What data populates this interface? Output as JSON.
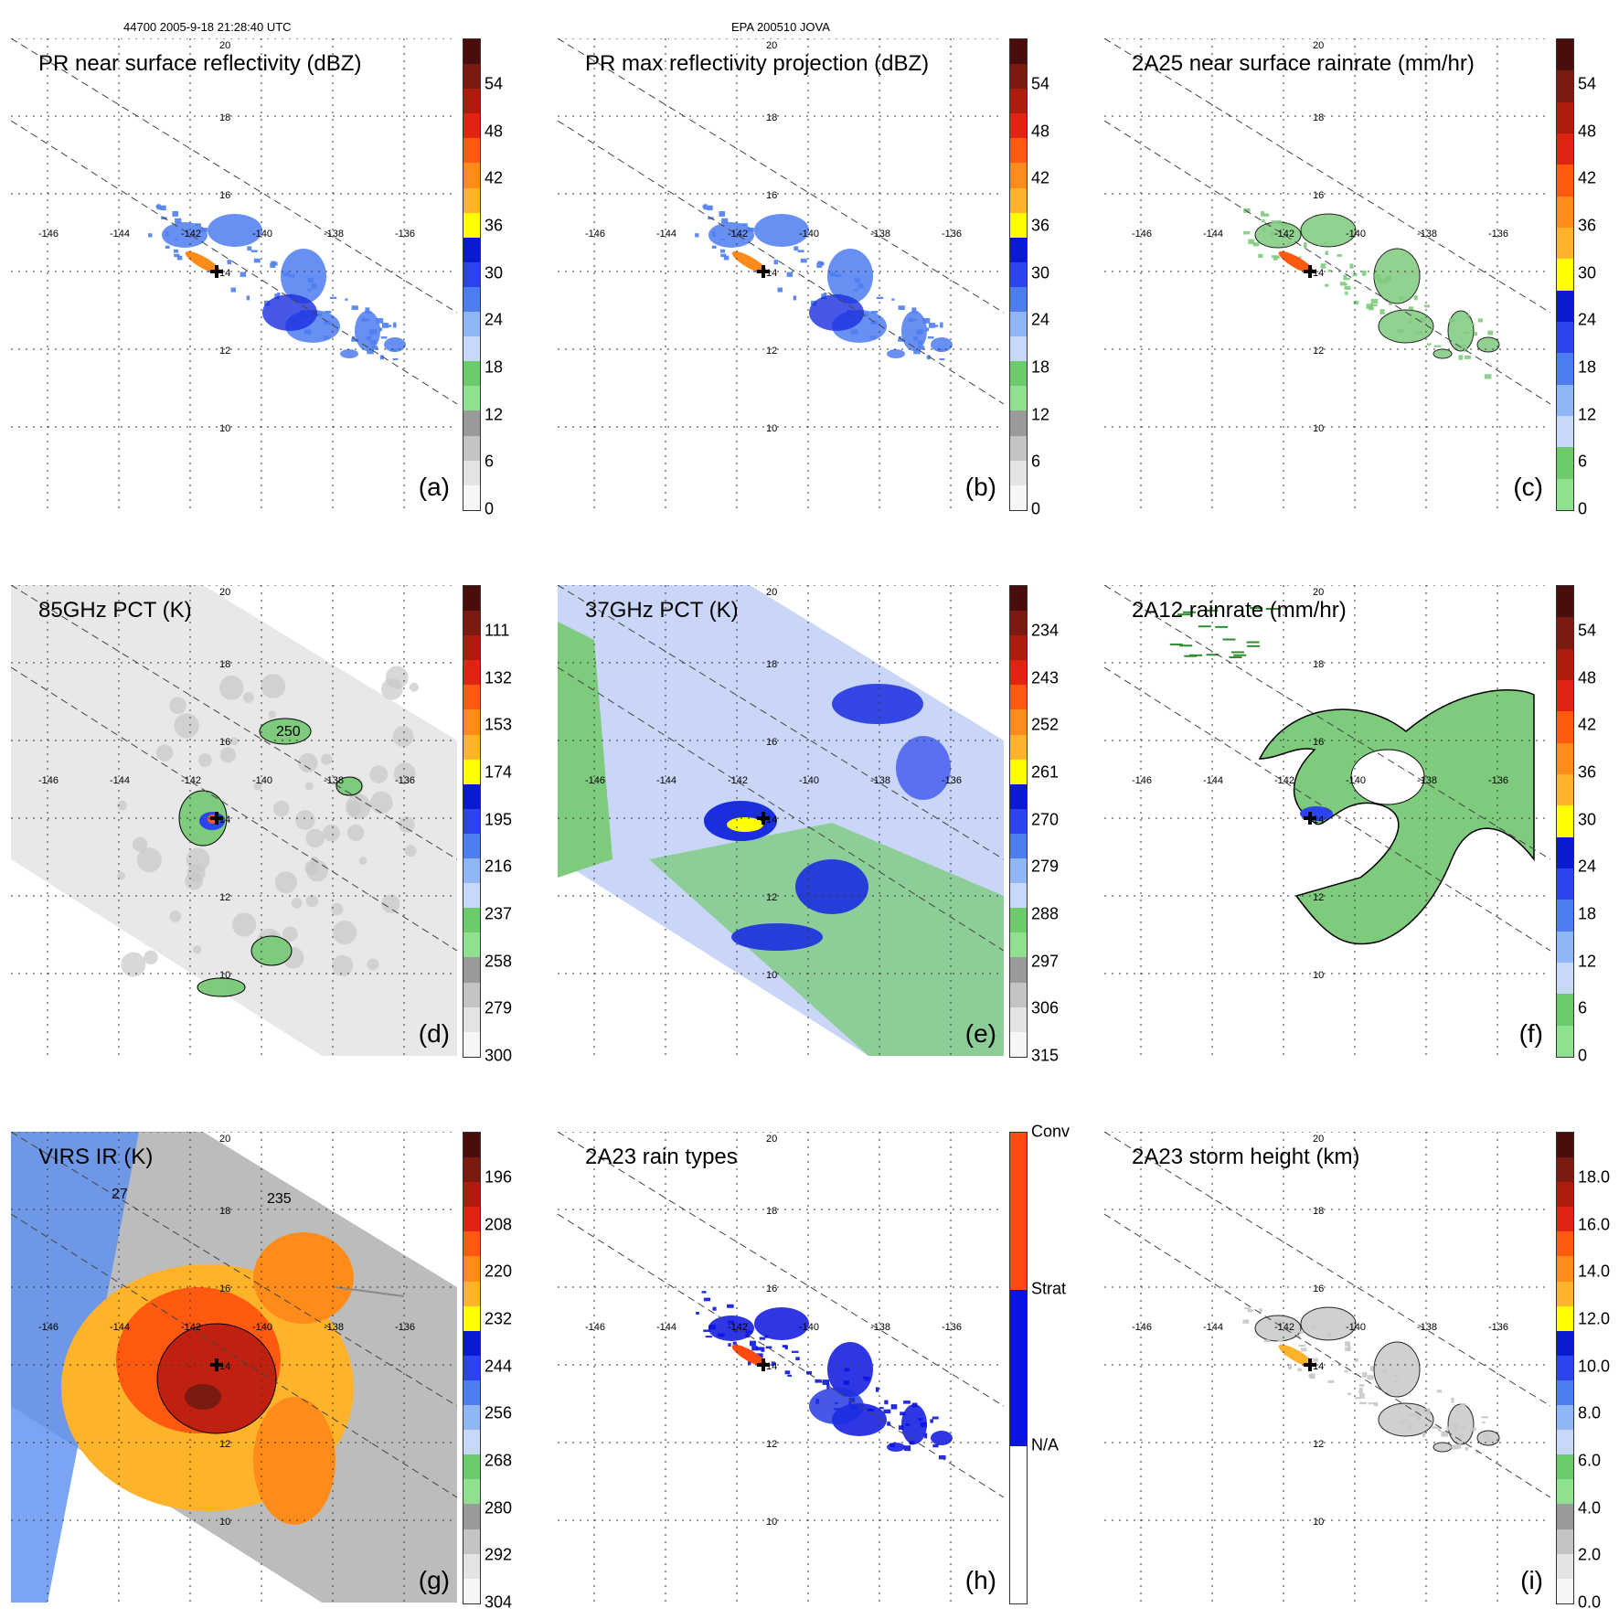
{
  "header": {
    "left": "44700 2005-9-18 21:28:40 UTC",
    "center": "EPA 200510 JOVA"
  },
  "grid": {
    "lon_labels": [
      "-146",
      "-144",
      "-142",
      "-140",
      "-138",
      "-136"
    ],
    "lat_labels": [
      "20",
      "18",
      "16",
      "14",
      "12",
      "10"
    ]
  },
  "panels": [
    {
      "id": "a",
      "title": "PR near surface reflectivity (dBZ)",
      "label": "(a)",
      "kind": "pr",
      "ticks": [
        "54",
        "48",
        "42",
        "36",
        "30",
        "24",
        "18",
        "12",
        "6",
        "0"
      ],
      "bar": [
        "#4a0d0d",
        "#7a1a10",
        "#b01b10",
        "#e02412",
        "#ff5a10",
        "#ff8c1a",
        "#ffb32a",
        "#ffff00",
        "#0a1ad0",
        "#2b44ee",
        "#4d7df0",
        "#8fb6f5",
        "#c8d8f8",
        "#6ccc6c",
        "#8fe08f",
        "#9a9a9a",
        "#c4c4c4",
        "#e4e4e4",
        "#f6f6f6"
      ]
    },
    {
      "id": "b",
      "title": "PR max reflectivity projection (dBZ)",
      "label": "(b)",
      "kind": "pr",
      "ticks": [
        "54",
        "48",
        "42",
        "36",
        "30",
        "24",
        "18",
        "12",
        "6",
        "0"
      ],
      "bar": [
        "#4a0d0d",
        "#7a1a10",
        "#b01b10",
        "#e02412",
        "#ff5a10",
        "#ff8c1a",
        "#ffb32a",
        "#ffff00",
        "#0a1ad0",
        "#2b44ee",
        "#4d7df0",
        "#8fb6f5",
        "#c8d8f8",
        "#6ccc6c",
        "#8fe08f",
        "#9a9a9a",
        "#c4c4c4",
        "#e4e4e4",
        "#f6f6f6"
      ]
    },
    {
      "id": "c",
      "title": "2A25 near surface rainrate (mm/hr)",
      "label": "(c)",
      "kind": "rain",
      "ticks": [
        "54",
        "48",
        "42",
        "36",
        "30",
        "24",
        "18",
        "12",
        "6",
        "0"
      ],
      "bar": [
        "#4a0d0d",
        "#7a1a10",
        "#b01b10",
        "#e02412",
        "#ff5a10",
        "#ff8c1a",
        "#ffb32a",
        "#ffff00",
        "#0a1ad0",
        "#2b44ee",
        "#4d7df0",
        "#8fb6f5",
        "#c8d8f8",
        "#6ccc6c",
        "#8fe08f"
      ]
    },
    {
      "id": "d",
      "title": "85GHz PCT (K)",
      "label": "(d)",
      "kind": "pct85",
      "ticks": [
        "111",
        "132",
        "153",
        "174",
        "195",
        "216",
        "237",
        "258",
        "279",
        "300"
      ],
      "bar": [
        "#4a0d0d",
        "#7a1a10",
        "#b01b10",
        "#e02412",
        "#ff5a10",
        "#ff8c1a",
        "#ffb32a",
        "#ffff00",
        "#0a1ad0",
        "#2b44ee",
        "#4d7df0",
        "#8fb6f5",
        "#c8d8f8",
        "#6ccc6c",
        "#8fe08f",
        "#9a9a9a",
        "#c4c4c4",
        "#e4e4e4",
        "#f6f6f6"
      ],
      "contour_label": "250"
    },
    {
      "id": "e",
      "title": "37GHz PCT (K)",
      "label": "(e)",
      "kind": "pct37",
      "ticks": [
        "234",
        "243",
        "252",
        "261",
        "270",
        "279",
        "288",
        "297",
        "306",
        "315"
      ],
      "bar": [
        "#4a0d0d",
        "#7a1a10",
        "#b01b10",
        "#e02412",
        "#ff5a10",
        "#ff8c1a",
        "#ffb32a",
        "#ffff00",
        "#0a1ad0",
        "#2b44ee",
        "#4d7df0",
        "#8fb6f5",
        "#c8d8f8",
        "#6ccc6c",
        "#8fe08f",
        "#9a9a9a",
        "#c4c4c4",
        "#e4e4e4",
        "#f6f6f6"
      ]
    },
    {
      "id": "f",
      "title": "2A12 rainrate (mm/hr)",
      "label": "(f)",
      "kind": "rain12",
      "ticks": [
        "54",
        "48",
        "42",
        "36",
        "30",
        "24",
        "18",
        "12",
        "6",
        "0"
      ],
      "bar": [
        "#4a0d0d",
        "#7a1a10",
        "#b01b10",
        "#e02412",
        "#ff5a10",
        "#ff8c1a",
        "#ffb32a",
        "#ffff00",
        "#0a1ad0",
        "#2b44ee",
        "#4d7df0",
        "#8fb6f5",
        "#c8d8f8",
        "#6ccc6c",
        "#8fe08f"
      ]
    },
    {
      "id": "g",
      "title": "VIRS IR (K)",
      "label": "(g)",
      "kind": "ir",
      "ticks": [
        "196",
        "208",
        "220",
        "232",
        "244",
        "256",
        "268",
        "280",
        "292",
        "304"
      ],
      "bar": [
        "#4a0d0d",
        "#7a1a10",
        "#b01b10",
        "#e02412",
        "#ff5a10",
        "#ff8c1a",
        "#ffb32a",
        "#ffff00",
        "#0a1ad0",
        "#2b44ee",
        "#4d7df0",
        "#8fb6f5",
        "#c8d8f8",
        "#6ccc6c",
        "#8fe08f",
        "#9a9a9a",
        "#c4c4c4",
        "#e4e4e4",
        "#f6f6f6"
      ],
      "contour_labels": [
        "27",
        "235"
      ]
    },
    {
      "id": "h",
      "title": "2A23 rain types",
      "label": "(h)",
      "kind": "types",
      "ticks": [
        "Conv",
        "Strat",
        "N/A"
      ],
      "bar": [
        "#ff4a10",
        "#ff4a10",
        "#0a14e0",
        "#0a14e0",
        "#ffffff",
        "#ffffff"
      ]
    },
    {
      "id": "i",
      "title": "2A23 storm height (km)",
      "label": "(i)",
      "kind": "height",
      "ticks": [
        "18.0",
        "16.0",
        "14.0",
        "12.0",
        "10.0",
        "8.0",
        "6.0",
        "4.0",
        "2.0",
        "0.0"
      ],
      "bar": [
        "#4a0d0d",
        "#7a1a10",
        "#b01b10",
        "#e02412",
        "#ff5a10",
        "#ff8c1a",
        "#ffb32a",
        "#ffff00",
        "#0a1ad0",
        "#2b44ee",
        "#4d7df0",
        "#8fb6f5",
        "#c8d8f8",
        "#6ccc6c",
        "#8fe08f",
        "#9a9a9a",
        "#c4c4c4",
        "#e4e4e4",
        "#f6f6f6"
      ]
    }
  ]
}
